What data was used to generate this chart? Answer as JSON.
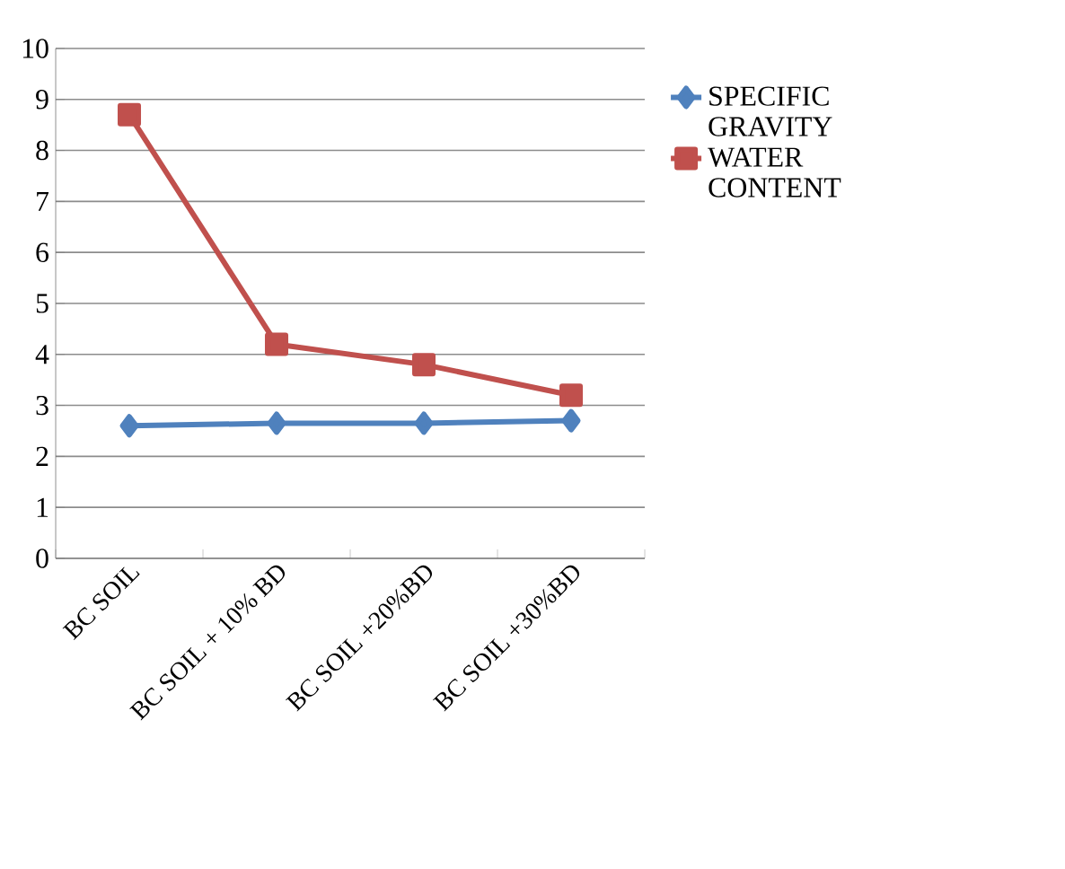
{
  "chart_data": {
    "type": "line",
    "categories": [
      "BC SOIL",
      "BC SOIL + 10% BD",
      "BC SOIL +20%BD",
      "BC SOIL +30%BD"
    ],
    "series": [
      {
        "name": "SPECIFIC GRAVITY",
        "color": "#4f81bd",
        "marker": "diamond",
        "values": [
          2.6,
          2.65,
          2.65,
          2.7
        ]
      },
      {
        "name": "WATER CONTENT",
        "color": "#c0504d",
        "marker": "square",
        "values": [
          8.7,
          4.2,
          3.8,
          3.2
        ]
      }
    ],
    "ylim": [
      0,
      10
    ],
    "yticks": [
      0,
      1,
      2,
      3,
      4,
      5,
      6,
      7,
      8,
      9,
      10
    ],
    "grid": "y",
    "legend": "right",
    "line_style": "solid"
  }
}
